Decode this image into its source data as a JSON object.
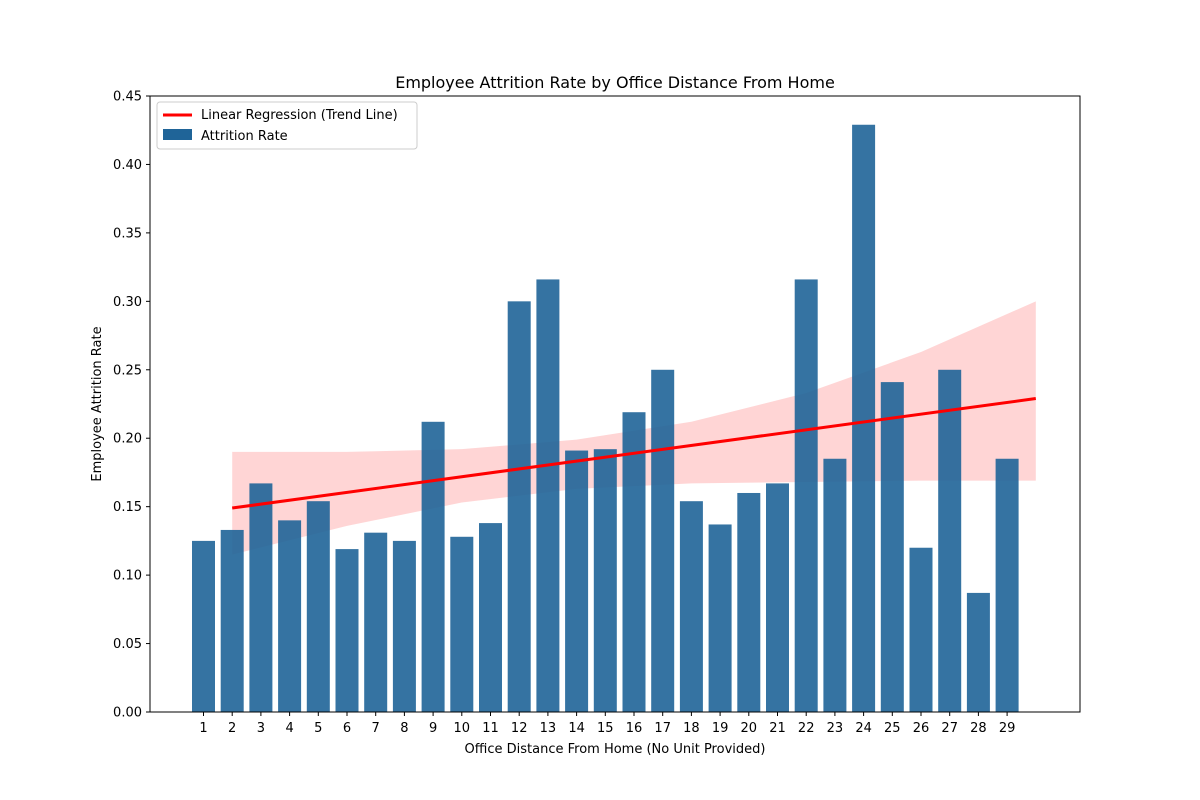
{
  "chart_data": {
    "type": "bar",
    "title": "Employee Attrition Rate by Office Distance From Home",
    "xlabel": "Office Distance From Home (No Unit Provided)",
    "ylabel": "Employee Attrition Rate",
    "ylim": [
      0,
      0.45
    ],
    "yticks": [
      "0.00",
      "0.05",
      "0.10",
      "0.15",
      "0.20",
      "0.25",
      "0.30",
      "0.35",
      "0.40",
      "0.45"
    ],
    "categories": [
      "1",
      "2",
      "3",
      "4",
      "5",
      "6",
      "7",
      "8",
      "9",
      "10",
      "11",
      "12",
      "13",
      "14",
      "15",
      "16",
      "17",
      "18",
      "19",
      "20",
      "21",
      "22",
      "23",
      "24",
      "25",
      "26",
      "27",
      "28",
      "29"
    ],
    "series": [
      {
        "name": "Attrition Rate",
        "color": "#1f6498",
        "values": [
          0.125,
          0.133,
          0.167,
          0.14,
          0.154,
          0.119,
          0.131,
          0.125,
          0.212,
          0.128,
          0.138,
          0.3,
          0.316,
          0.191,
          0.192,
          0.219,
          0.25,
          0.154,
          0.137,
          0.16,
          0.167,
          0.316,
          0.185,
          0.429,
          0.241,
          0.12,
          0.25,
          0.087,
          0.185
        ]
      }
    ],
    "trend_line": {
      "name": "Linear Regression (Trend Line)",
      "color": "#ff0000",
      "band_color": "#ffb3b3",
      "x_start": 2,
      "x_end": 30,
      "y_start": 0.149,
      "y_end": 0.229,
      "ci_x": [
        2,
        6,
        10,
        14,
        18,
        22,
        26,
        30
      ],
      "ci_upper": [
        0.19,
        0.19,
        0.192,
        0.199,
        0.212,
        0.233,
        0.263,
        0.3
      ],
      "ci_lower": [
        0.115,
        0.136,
        0.153,
        0.163,
        0.167,
        0.168,
        0.169,
        0.169
      ]
    },
    "legend": {
      "position": "top-left"
    },
    "grid": false
  }
}
